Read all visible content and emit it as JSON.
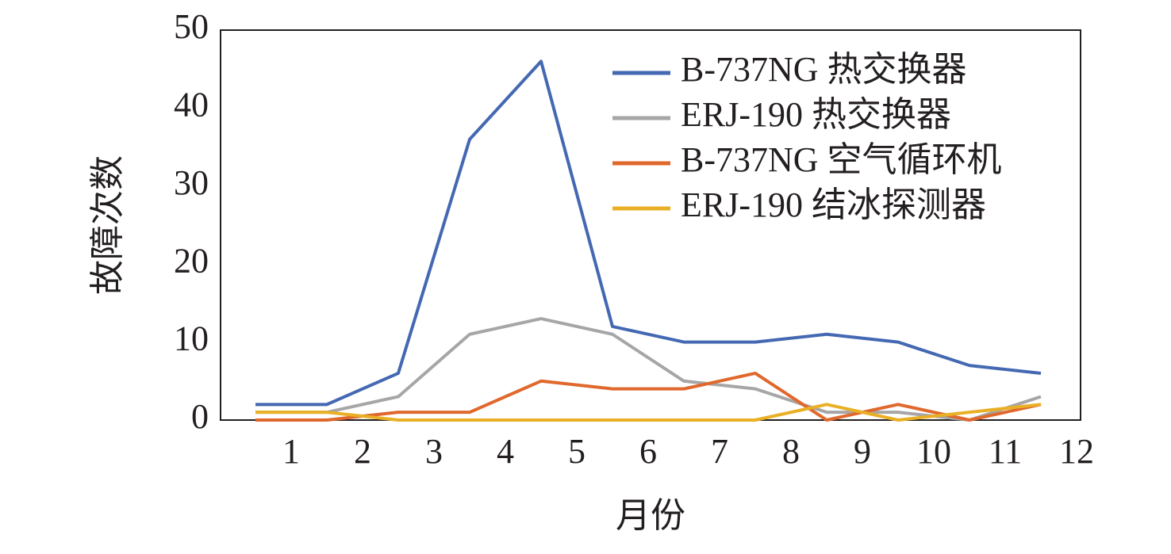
{
  "chart_data": {
    "type": "line",
    "xlabel": "月份",
    "ylabel": "故障次数",
    "x": [
      0.5,
      1.5,
      2.5,
      3.5,
      4.5,
      5.5,
      6.5,
      7.5,
      8.5,
      9.5,
      10.5,
      11.5
    ],
    "series": [
      {
        "name": "B-737NG 热交换器",
        "color": "#4468b2",
        "values": [
          2,
          2,
          6,
          36,
          46,
          12,
          10,
          10,
          11,
          10,
          7,
          6
        ]
      },
      {
        "name": "ERJ-190 热交换器",
        "color": "#a6a6a6",
        "values": [
          1,
          1,
          3,
          11,
          13,
          11,
          5,
          4,
          1,
          1,
          0,
          3
        ]
      },
      {
        "name": "B-737NG 空气循环机",
        "color": "#e0682c",
        "values": [
          0,
          0,
          1,
          1,
          5,
          4,
          4,
          6,
          0,
          2,
          0,
          2
        ]
      },
      {
        "name": "ERJ-190 结冰探测器",
        "color": "#e9b025",
        "values": [
          1,
          1,
          0,
          0,
          0,
          0,
          0,
          0,
          2,
          0,
          1,
          2
        ]
      }
    ],
    "xlim": [
      0,
      12
    ],
    "xticks": [
      1,
      2,
      3,
      4,
      5,
      6,
      7,
      8,
      9,
      10,
      11,
      12
    ],
    "ylim": [
      0,
      50
    ],
    "yticks": [
      0,
      10,
      20,
      30,
      40,
      50
    ],
    "legend": "upper-right"
  }
}
